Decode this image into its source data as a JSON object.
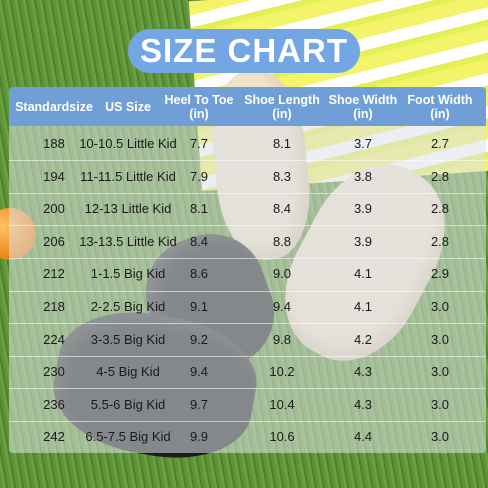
{
  "title": "SIZE CHART",
  "headers": [
    {
      "line1": "Standardsize",
      "line2": ""
    },
    {
      "line1": "US Size",
      "line2": ""
    },
    {
      "line1": "Heel To Toe",
      "line2": "(in)"
    },
    {
      "line1": "Shoe Length",
      "line2": "(in)"
    },
    {
      "line1": "Shoe Width",
      "line2": "(in)"
    },
    {
      "line1": "Foot Width",
      "line2": "(in)"
    }
  ],
  "rows": [
    [
      "188",
      "10-10.5 Little Kid",
      "7.7",
      "8.1",
      "3.7",
      "2.7"
    ],
    [
      "194",
      "11-11.5 Little Kid",
      "7.9",
      "8.3",
      "3.8",
      "2.8"
    ],
    [
      "200",
      "12-13 Little Kid",
      "8.1",
      "8.4",
      "3.9",
      "2.8"
    ],
    [
      "206",
      "13-13.5 Little Kid",
      "8.4",
      "8.8",
      "3.9",
      "2.8"
    ],
    [
      "212",
      "1-1.5 Big Kid",
      "8.6",
      "9.0",
      "4.1",
      "2.9"
    ],
    [
      "218",
      "2-2.5 Big Kid",
      "9.1",
      "9.4",
      "4.1",
      "3.0"
    ],
    [
      "224",
      "3-3.5 Big Kid",
      "9.2",
      "9.8",
      "4.2",
      "3.0"
    ],
    [
      "230",
      "4-5 Big Kid",
      "9.4",
      "10.2",
      "4.3",
      "3.0"
    ],
    [
      "236",
      "5.5-6 Big Kid",
      "9.7",
      "10.4",
      "4.3",
      "3.0"
    ],
    [
      "242",
      "6.5-7.5 Big Kid",
      "9.9",
      "10.6",
      "4.4",
      "3.0"
    ]
  ],
  "colors": {
    "title_pill": "#74a6e4",
    "header_band": "#6f9fd6",
    "text_dark": "#1a1a1a",
    "text_light": "#ffffff"
  },
  "scene": [
    "grass",
    "striped-towel",
    "orange-ball",
    "beige-slides",
    "black-slides"
  ]
}
